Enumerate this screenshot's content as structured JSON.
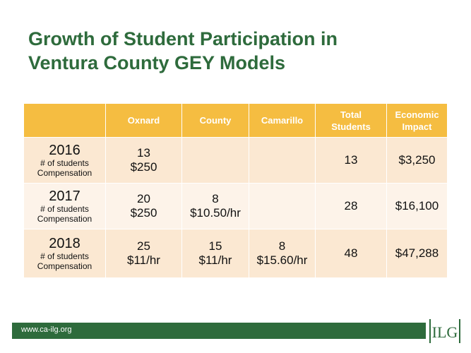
{
  "title": {
    "line1": "Growth of Student Participation in",
    "line2": "Ventura County GEY Models"
  },
  "table": {
    "headers": [
      "",
      "Oxnard",
      "County",
      "Camarillo",
      "Total\nStudents",
      "Economic\nImpact"
    ],
    "sub_labels": [
      "# of students",
      "Compensation"
    ],
    "rows": [
      {
        "year": "2016",
        "oxnard": [
          "13",
          "$250"
        ],
        "county": [
          "",
          ""
        ],
        "camarillo": [
          "",
          ""
        ],
        "total": "13",
        "impact": "$3,250"
      },
      {
        "year": "2017",
        "oxnard": [
          "20",
          "$250"
        ],
        "county": [
          "8",
          "$10.50/hr"
        ],
        "camarillo": [
          "",
          ""
        ],
        "total": "28",
        "impact": "$16,100"
      },
      {
        "year": "2018",
        "oxnard": [
          "25",
          "$11/hr"
        ],
        "county": [
          "15",
          "$11/hr"
        ],
        "camarillo": [
          "8",
          "$15.60/hr"
        ],
        "total": "48",
        "impact": "$47,288"
      }
    ]
  },
  "footer": {
    "url": "www.ca-ilg.org"
  },
  "logo": {
    "text": "ILG"
  },
  "colors": {
    "brand_green": "#2e6b3c",
    "header_gold": "#f5bd41",
    "row_dark": "#fbe8d2",
    "row_light": "#fdf3e9"
  }
}
